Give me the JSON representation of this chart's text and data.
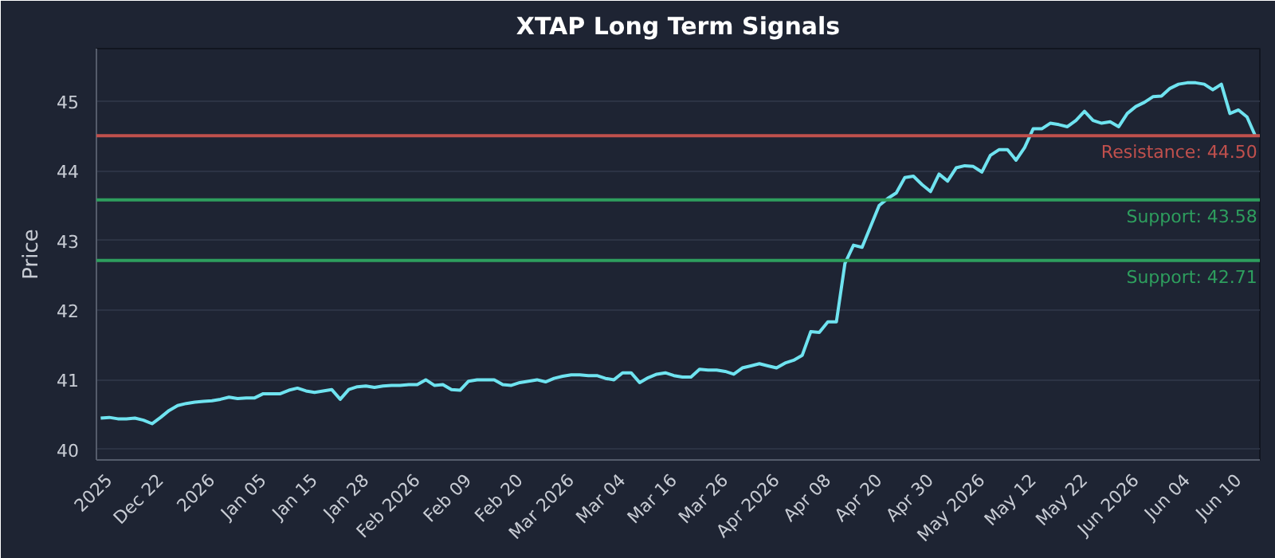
{
  "chart_data": {
    "type": "line",
    "title": "XTAP Long Term Signals",
    "ylabel": "Price",
    "categories": [
      null,
      "2025",
      null,
      null,
      null,
      null,
      null,
      "Dec 22",
      null,
      null,
      null,
      null,
      null,
      "2026",
      null,
      null,
      null,
      null,
      null,
      "Jan 05",
      null,
      null,
      null,
      null,
      null,
      "Jan 15",
      null,
      null,
      null,
      null,
      null,
      "Jan 28",
      null,
      null,
      null,
      null,
      null,
      "Feb 2026",
      null,
      null,
      null,
      null,
      null,
      "Feb 09",
      null,
      null,
      null,
      null,
      null,
      "Feb 20",
      null,
      null,
      null,
      null,
      null,
      "Mar 2026",
      null,
      null,
      null,
      null,
      null,
      "Mar 04",
      null,
      null,
      null,
      null,
      null,
      "Mar 16",
      null,
      null,
      null,
      null,
      null,
      "Mar 26",
      null,
      null,
      null,
      null,
      null,
      "Apr 2026",
      null,
      null,
      null,
      null,
      null,
      "Apr 08",
      null,
      null,
      null,
      null,
      null,
      "Apr 20",
      null,
      null,
      null,
      null,
      null,
      "Apr 30",
      null,
      null,
      null,
      null,
      null,
      "May 2026",
      null,
      null,
      null,
      null,
      null,
      "May 12",
      null,
      null,
      null,
      null,
      null,
      "May 22",
      null,
      null,
      null,
      null,
      null,
      "Jun 2026",
      null,
      null,
      null,
      null,
      null,
      "Jun 04",
      null,
      null,
      null,
      null,
      null,
      "Jun 10",
      null,
      null
    ],
    "series": [
      {
        "color": "#6fe3f0",
        "values": [
          40.45,
          40.46,
          40.44,
          40.44,
          40.45,
          40.42,
          40.37,
          40.46,
          40.56,
          40.63,
          40.66,
          40.68,
          40.69,
          40.7,
          40.72,
          40.75,
          40.73,
          40.74,
          40.74,
          40.8,
          40.8,
          40.8,
          40.85,
          40.88,
          40.84,
          40.82,
          40.84,
          40.86,
          40.72,
          40.86,
          40.9,
          40.91,
          40.89,
          40.91,
          40.92,
          40.92,
          40.93,
          40.93,
          41.0,
          40.92,
          40.93,
          40.86,
          40.85,
          40.98,
          41.0,
          41.0,
          41.0,
          40.93,
          40.92,
          40.96,
          40.98,
          41.0,
          40.97,
          41.02,
          41.05,
          41.07,
          41.07,
          41.06,
          41.06,
          41.02,
          41.0,
          41.1,
          41.1,
          40.96,
          41.03,
          41.08,
          41.1,
          41.06,
          41.04,
          41.04,
          41.15,
          41.14,
          41.14,
          41.12,
          41.08,
          41.17,
          41.2,
          41.23,
          41.2,
          41.17,
          41.24,
          41.28,
          41.35,
          41.69,
          41.68,
          41.83,
          41.83,
          42.67,
          42.93,
          42.9,
          43.2,
          43.5,
          43.6,
          43.68,
          43.9,
          43.92,
          43.8,
          43.7,
          43.95,
          43.85,
          44.04,
          44.07,
          44.06,
          43.98,
          44.22,
          44.3,
          44.3,
          44.15,
          44.33,
          44.6,
          44.6,
          44.68,
          44.66,
          44.63,
          44.72,
          44.85,
          44.72,
          44.68,
          44.7,
          44.63,
          44.82,
          44.92,
          44.98,
          45.06,
          45.07,
          45.18,
          45.24,
          45.26,
          45.26,
          45.24,
          45.16,
          45.24,
          44.82,
          44.87,
          44.77,
          44.49
        ]
      }
    ],
    "ylim": [
      39.85,
      45.75
    ],
    "yticks": [
      40,
      41,
      42,
      43,
      44,
      45
    ],
    "grid": "y",
    "marker": "none",
    "line_style": "solid",
    "ref_lines": [
      {
        "axis": "y",
        "value": 44.5,
        "label": "Resistance: 44.50",
        "color": "#c0504d"
      },
      {
        "axis": "y",
        "value": 43.58,
        "label": "Support: 43.58",
        "color": "#2e9e5e"
      },
      {
        "axis": "y",
        "value": 42.71,
        "label": "Support: 42.71",
        "color": "#2e9e5e"
      }
    ]
  }
}
